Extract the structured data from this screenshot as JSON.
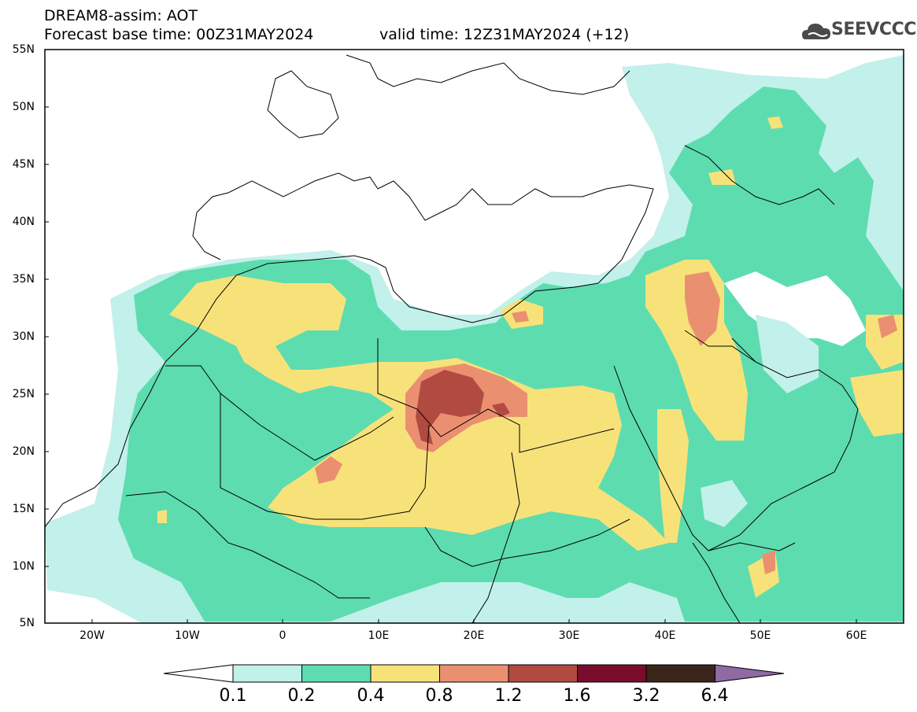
{
  "header": {
    "line1": "DREAM8-assim: AOT",
    "base_time": "Forecast base time: 00Z31MAY2024",
    "valid_time": "valid time: 12Z31MAY2024 (+12)",
    "logo_text": "SEEVCCC"
  },
  "axes": {
    "lat_labels": [
      "55N",
      "50N",
      "45N",
      "40N",
      "35N",
      "30N",
      "25N",
      "20N",
      "15N",
      "10N",
      "5N"
    ],
    "lon_labels": [
      "20W",
      "10W",
      "0",
      "10E",
      "20E",
      "30E",
      "40E",
      "50E",
      "60E"
    ]
  },
  "colorbar": {
    "labels": [
      "0.1",
      "0.2",
      "0.4",
      "0.8",
      "1.2",
      "1.6",
      "3.2",
      "6.4"
    ],
    "colors": [
      "#ffffff",
      "#c2f0ea",
      "#5ddcb0",
      "#f7e27a",
      "#ea9070",
      "#b14a40",
      "#780c2a",
      "#3b2419",
      "#8f6aa3"
    ]
  }
}
